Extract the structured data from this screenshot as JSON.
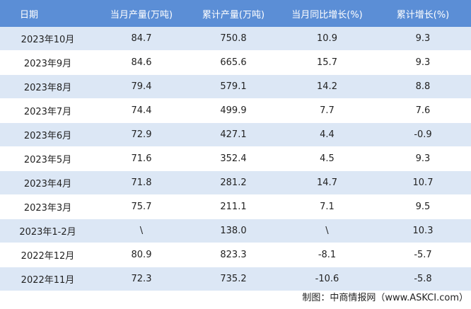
{
  "table": {
    "header": [
      "日期",
      "当月产量(万吨)",
      "累计产量(万吨)",
      "当月同比增长(%)",
      "累计增长(%)"
    ],
    "rows": [
      [
        "2023年10月",
        "84.7",
        "750.8",
        "10.9",
        "9.3"
      ],
      [
        "2023年9月",
        "84.6",
        "665.6",
        "15.7",
        "9.3"
      ],
      [
        "2023年8月",
        "79.4",
        "579.1",
        "14.2",
        "8.8"
      ],
      [
        "2023年7月",
        "74.4",
        "499.9",
        "7.7",
        "7.6"
      ],
      [
        "2023年6月",
        "72.9",
        "427.1",
        "4.4",
        "-0.9"
      ],
      [
        "2023年5月",
        "71.6",
        "352.4",
        "4.5",
        "9.3"
      ],
      [
        "2023年4月",
        "71.8",
        "281.2",
        "14.7",
        "10.7"
      ],
      [
        "2023年3月",
        "75.7",
        "211.1",
        "7.1",
        "9.5"
      ],
      [
        "2023年1-2月",
        "\\",
        "138.0",
        "\\",
        "10.3"
      ],
      [
        "2022年12月",
        "80.9",
        "823.3",
        "-8.1",
        "-5.7"
      ],
      [
        "2022年11月",
        "72.3",
        "735.2",
        "-10.6",
        "-5.8"
      ]
    ]
  },
  "footer": "制图：中商情报网（www.ASKCI.com）"
}
